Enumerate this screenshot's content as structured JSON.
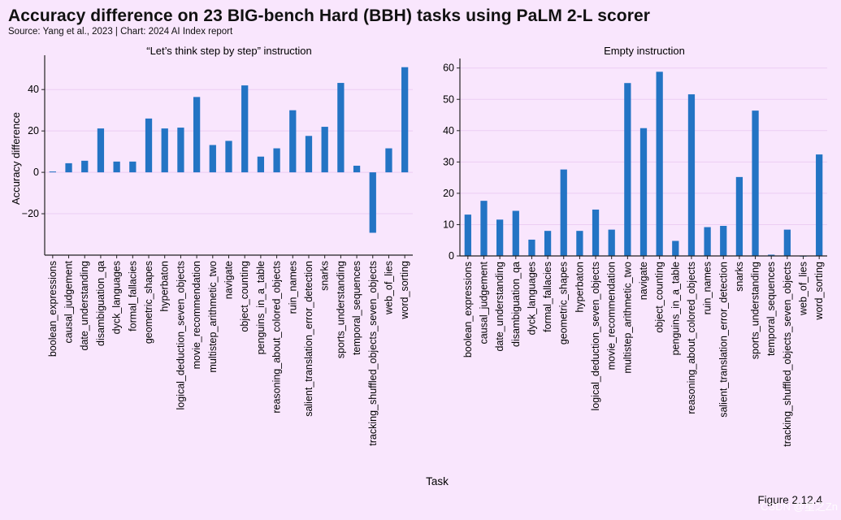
{
  "header": {
    "title": "Accuracy difference on 23 BIG-bench Hard (BBH) tasks using PaLM 2-L scorer",
    "subtitle": "Source: Yang et al., 2023 | Chart: 2024 AI Index report"
  },
  "footer": {
    "figure_label": "Figure 2.12.4",
    "watermark": "CSDN @星之Zn"
  },
  "colors": {
    "background": "#f9e6fd",
    "bar": "#2374c4",
    "axis": "#222222",
    "grid": "#eccdf3"
  },
  "chart_data": [
    {
      "type": "bar",
      "title": "“Let’s think step by step” instruction",
      "xlabel": "Task",
      "ylabel": "Accuracy difference",
      "ylim": [
        -40,
        55
      ],
      "yticks": [
        -20,
        0,
        20,
        40
      ],
      "grid": true,
      "categories": [
        "boolean_expressions",
        "causal_judgement",
        "date_understanding",
        "disambiguation_qa",
        "dyck_languages",
        "formal_fallacies",
        "geometric_shapes",
        "hyperbaton",
        "logical_deduction_seven_objects",
        "movie_recommendation",
        "multistep_arithmetic_two",
        "navigate",
        "object_counting",
        "penguins_in_a_table",
        "reasoning_about_colored_objects",
        "ruin_names",
        "salient_translation_error_detection",
        "snarks",
        "sports_understanding",
        "temporal_sequences",
        "tracking_shuffled_objects_seven_objects",
        "web_of_lies",
        "word_sorting"
      ],
      "values": [
        0.4,
        4.4,
        5.6,
        21.2,
        5.2,
        5.2,
        26.0,
        21.2,
        21.6,
        36.4,
        13.2,
        15.2,
        42.0,
        7.6,
        11.6,
        30.0,
        17.6,
        22.0,
        43.2,
        3.2,
        -29.2,
        11.6,
        50.8
      ]
    },
    {
      "type": "bar",
      "title": "Empty instruction",
      "xlabel": "Task",
      "ylabel": "",
      "ylim": [
        0,
        62
      ],
      "yticks": [
        0,
        10,
        20,
        30,
        40,
        50,
        60
      ],
      "grid": true,
      "categories": [
        "boolean_expressions",
        "causal_judgement",
        "date_understanding",
        "disambiguation_qa",
        "dyck_languages",
        "formal_fallacies",
        "geometric_shapes",
        "hyperbaton",
        "logical_deduction_seven_objects",
        "movie_recommendation",
        "multistep_arithmetic_two",
        "navigate",
        "object_counting",
        "penguins_in_a_table",
        "reasoning_about_colored_objects",
        "ruin_names",
        "salient_translation_error_detection",
        "snarks",
        "sports_understanding",
        "temporal_sequences",
        "tracking_shuffled_objects_seven_objects",
        "web_of_lies",
        "word_sorting"
      ],
      "values": [
        13.2,
        17.6,
        11.6,
        14.4,
        5.2,
        8.0,
        27.6,
        8.0,
        14.8,
        8.4,
        55.2,
        40.8,
        58.8,
        4.8,
        51.6,
        9.2,
        9.6,
        25.2,
        46.4,
        0.4,
        8.4,
        0.0,
        32.4
      ]
    }
  ]
}
